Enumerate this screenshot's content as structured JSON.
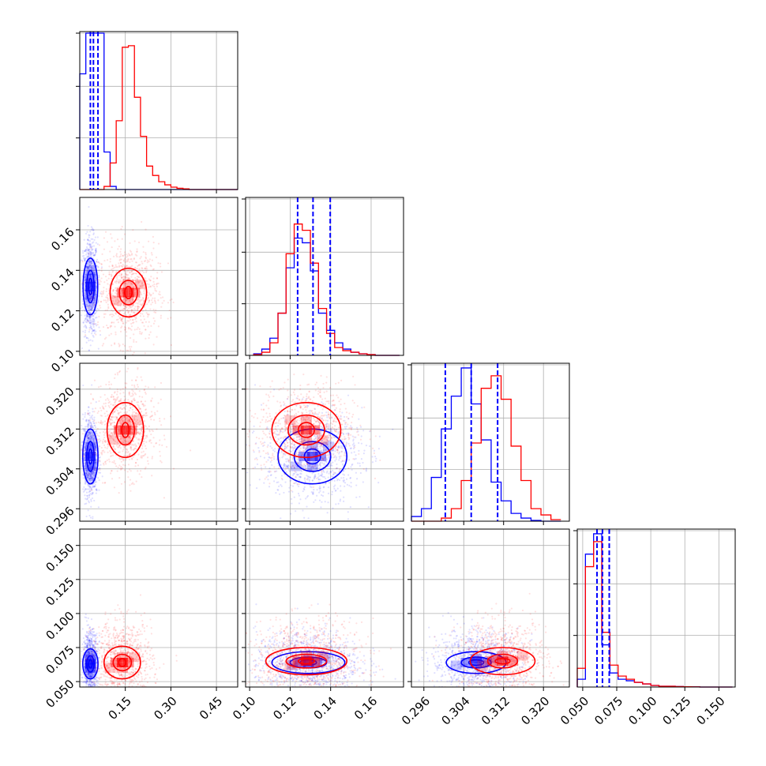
{
  "chart_data": {
    "type": "corner",
    "series": [
      {
        "name": "",
        "color": "#0000ff"
      },
      {
        "name": "",
        "color": "#ff0000"
      }
    ],
    "parameters": [
      {
        "range": [
          0.0,
          0.52
        ],
        "ticks": [
          "0.15",
          "0.30",
          "0.45"
        ],
        "tick_values": [
          0.15,
          0.3,
          0.45
        ]
      },
      {
        "range": [
          0.098,
          0.176
        ],
        "ticks": [
          "0.10",
          "0.12",
          "0.14",
          "0.16"
        ],
        "tick_values": [
          0.1,
          0.12,
          0.14,
          0.16
        ]
      },
      {
        "range": [
          0.2935,
          0.3252
        ],
        "ticks": [
          "0.296",
          "0.304",
          "0.312",
          "0.320"
        ],
        "tick_values": [
          0.296,
          0.304,
          0.312,
          0.32
        ]
      },
      {
        "range": [
          0.046,
          0.162
        ],
        "ticks": [
          "0.050",
          "0.075",
          "0.100",
          "0.125",
          "0.150"
        ],
        "tick_values": [
          0.05,
          0.075,
          0.1,
          0.125,
          0.15
        ]
      }
    ],
    "histograms": [
      {
        "bins": [
          0.0,
          0.02,
          0.04,
          0.06,
          0.08,
          0.1,
          0.12,
          0.14,
          0.16,
          0.18,
          0.2,
          0.22,
          0.24,
          0.26,
          0.28,
          0.3,
          0.32,
          0.34,
          0.36,
          0.38,
          0.4,
          0.42,
          0.44,
          0.46,
          0.48,
          0.5,
          0.52
        ],
        "blue": [
          0.74,
          1.0,
          1.0,
          1.0,
          0.24,
          0.02,
          0,
          0,
          0,
          0,
          0,
          0,
          0,
          0,
          0,
          0,
          0,
          0,
          0,
          0,
          0,
          0,
          0,
          0,
          0,
          0
        ],
        "red": [
          0,
          0,
          0,
          0,
          0.02,
          0.17,
          0.44,
          0.91,
          0.92,
          0.59,
          0.34,
          0.15,
          0.09,
          0.05,
          0.03,
          0.015,
          0.008,
          0.004,
          0,
          0,
          0,
          0,
          0,
          0,
          0,
          0
        ],
        "blue_quantiles": [
          0.035,
          0.045,
          0.06
        ]
      },
      {
        "bins": [
          0.102,
          0.106,
          0.11,
          0.114,
          0.118,
          0.122,
          0.126,
          0.13,
          0.134,
          0.138,
          0.142,
          0.146,
          0.15,
          0.154,
          0.158,
          0.162,
          0.166,
          0.17,
          0.174
        ],
        "blue": [
          0.01,
          0.04,
          0.11,
          0.27,
          0.56,
          0.75,
          0.72,
          0.54,
          0.27,
          0.16,
          0.08,
          0.04,
          0.02,
          0.01,
          0.005,
          0,
          0,
          0
        ],
        "red": [
          0.005,
          0.02,
          0.08,
          0.27,
          0.65,
          0.84,
          0.8,
          0.59,
          0.3,
          0.14,
          0.05,
          0.03,
          0.02,
          0.01,
          0.005,
          0,
          0,
          0
        ],
        "blue_quantiles": [
          0.1237,
          0.1313,
          0.1398
        ]
      },
      {
        "bins": [
          0.2935,
          0.2955,
          0.2975,
          0.2995,
          0.3015,
          0.3035,
          0.3055,
          0.3075,
          0.3095,
          0.3115,
          0.3135,
          0.3155,
          0.3175,
          0.3195,
          0.3215,
          0.3235
        ],
        "blue": [
          0.03,
          0.08,
          0.28,
          0.59,
          0.8,
          0.98,
          0.75,
          0.52,
          0.25,
          0.13,
          0.05,
          0.02,
          0.005,
          0,
          0
        ],
        "red": [
          0,
          0,
          0,
          0.02,
          0.08,
          0.26,
          0.5,
          0.85,
          0.93,
          0.78,
          0.48,
          0.26,
          0.08,
          0.04,
          0.01
        ],
        "blue_quantiles": [
          0.3003,
          0.3055,
          0.3108
        ]
      },
      {
        "bins": [
          0.046,
          0.052,
          0.058,
          0.064,
          0.07,
          0.076,
          0.082,
          0.088,
          0.094,
          0.1,
          0.106,
          0.112,
          0.118,
          0.124,
          0.13,
          0.136,
          0.142,
          0.148,
          0.154,
          0.16
        ],
        "blue": [
          0.05,
          0.85,
          0.98,
          0.27,
          0.09,
          0.05,
          0.04,
          0.03,
          0.02,
          0.01,
          0.005,
          0.005,
          0.003,
          0.002,
          0.001,
          0,
          0,
          0,
          0
        ],
        "red": [
          0.12,
          0.77,
          0.93,
          0.35,
          0.14,
          0.07,
          0.05,
          0.03,
          0.02,
          0.01,
          0.005,
          0.005,
          0.003,
          0.002,
          0.001,
          0,
          0,
          0,
          0
        ],
        "blue_quantiles": [
          0.0605,
          0.0645,
          0.0695
        ]
      }
    ],
    "panels_2d": [
      {
        "x": 0,
        "y": 1,
        "blue": {
          "center": [
            0.035,
            0.132
          ],
          "contour_widths": [
            [
              0.006,
              0.004
            ],
            [
              0.012,
              0.008
            ],
            [
              0.024,
              0.014
            ]
          ],
          "scatter_spread": [
            0.012,
            0.012
          ],
          "cells": [
            [
              0.035,
              0.132,
              0.9
            ],
            [
              0.035,
              0.128,
              0.6
            ],
            [
              0.035,
              0.136,
              0.6
            ],
            [
              0.035,
              0.124,
              0.3
            ],
            [
              0.035,
              0.14,
              0.3
            ]
          ]
        },
        "red": {
          "center": [
            0.16,
            0.129
          ],
          "contour_widths": [
            [
              0.012,
              0.003
            ],
            [
              0.03,
              0.006
            ],
            [
              0.06,
              0.012
            ]
          ],
          "scatter_spread": [
            0.05,
            0.012
          ],
          "cells": [
            [
              0.16,
              0.129,
              0.9
            ],
            [
              0.14,
              0.129,
              0.6
            ],
            [
              0.18,
              0.129,
              0.6
            ],
            [
              0.16,
              0.133,
              0.4
            ],
            [
              0.16,
              0.125,
              0.4
            ],
            [
              0.2,
              0.133,
              0.3
            ],
            [
              0.12,
              0.125,
              0.3
            ]
          ]
        }
      },
      {
        "x": 0,
        "y": 2,
        "blue": {
          "center": [
            0.035,
            0.3065
          ],
          "contour_widths": [
            [
              0.006,
              0.0015
            ],
            [
              0.012,
              0.003
            ],
            [
              0.025,
              0.0055
            ]
          ],
          "scatter_spread": [
            0.012,
            0.004
          ],
          "cells": [
            [
              0.035,
              0.3065,
              0.9
            ],
            [
              0.035,
              0.3045,
              0.6
            ],
            [
              0.035,
              0.3085,
              0.6
            ],
            [
              0.035,
              0.3025,
              0.3
            ],
            [
              0.035,
              0.3105,
              0.3
            ]
          ]
        },
        "red": {
          "center": [
            0.15,
            0.3118
          ],
          "contour_widths": [
            [
              0.012,
              0.0015
            ],
            [
              0.03,
              0.003
            ],
            [
              0.06,
              0.0055
            ]
          ],
          "scatter_spread": [
            0.05,
            0.0045
          ],
          "cells": [
            [
              0.15,
              0.3118,
              0.9
            ],
            [
              0.13,
              0.3118,
              0.6
            ],
            [
              0.17,
              0.3118,
              0.6
            ],
            [
              0.15,
              0.3138,
              0.4
            ],
            [
              0.15,
              0.3098,
              0.4
            ],
            [
              0.19,
              0.3138,
              0.3
            ],
            [
              0.11,
              0.3098,
              0.3
            ]
          ]
        }
      },
      {
        "x": 0,
        "y": 3,
        "blue": {
          "center": [
            0.035,
            0.063
          ],
          "contour_widths": [
            [
              0.006,
              0.003
            ],
            [
              0.012,
              0.006
            ],
            [
              0.025,
              0.011
            ]
          ],
          "scatter_spread": [
            0.012,
            0.012
          ],
          "cells": [
            [
              0.035,
              0.063,
              0.9
            ],
            [
              0.035,
              0.06,
              0.6
            ],
            [
              0.035,
              0.066,
              0.6
            ],
            [
              0.035,
              0.057,
              0.3
            ],
            [
              0.035,
              0.069,
              0.3
            ]
          ]
        },
        "red": {
          "center": [
            0.14,
            0.064
          ],
          "contour_widths": [
            [
              0.012,
              0.003
            ],
            [
              0.03,
              0.006
            ],
            [
              0.06,
              0.012
            ]
          ],
          "scatter_spread": [
            0.05,
            0.015
          ],
          "cells": [
            [
              0.14,
              0.064,
              0.9
            ],
            [
              0.12,
              0.064,
              0.6
            ],
            [
              0.16,
              0.064,
              0.6
            ],
            [
              0.14,
              0.068,
              0.4
            ],
            [
              0.14,
              0.06,
              0.4
            ],
            [
              0.18,
              0.068,
              0.3
            ],
            [
              0.1,
              0.06,
              0.3
            ]
          ]
        }
      },
      {
        "x": 1,
        "y": 2,
        "blue": {
          "center": [
            0.131,
            0.3065
          ],
          "contour_widths": [
            [
              0.004,
              0.0015
            ],
            [
              0.009,
              0.003
            ],
            [
              0.017,
              0.0055
            ]
          ],
          "scatter_spread": [
            0.012,
            0.0045
          ],
          "cells": [
            [
              0.131,
              0.3065,
              0.9
            ],
            [
              0.127,
              0.3065,
              0.6
            ],
            [
              0.135,
              0.3065,
              0.6
            ],
            [
              0.131,
              0.3045,
              0.4
            ],
            [
              0.131,
              0.3085,
              0.4
            ],
            [
              0.123,
              0.3045,
              0.3
            ],
            [
              0.139,
              0.3085,
              0.3
            ]
          ]
        },
        "red": {
          "center": [
            0.128,
            0.3118
          ],
          "contour_widths": [
            [
              0.004,
              0.0015
            ],
            [
              0.009,
              0.003
            ],
            [
              0.017,
              0.0055
            ]
          ],
          "scatter_spread": [
            0.012,
            0.0045
          ],
          "cells": [
            [
              0.128,
              0.3118,
              0.9
            ],
            [
              0.124,
              0.3118,
              0.6
            ],
            [
              0.132,
              0.3118,
              0.6
            ],
            [
              0.128,
              0.3138,
              0.4
            ],
            [
              0.128,
              0.3098,
              0.4
            ],
            [
              0.12,
              0.3138,
              0.3
            ],
            [
              0.136,
              0.3098,
              0.3
            ]
          ]
        }
      },
      {
        "x": 1,
        "y": 3,
        "blue": {
          "center": [
            0.129,
            0.064
          ],
          "contour_widths": [
            [
              0.004,
              0.002
            ],
            [
              0.009,
              0.004
            ],
            [
              0.018,
              0.008
            ]
          ],
          "scatter_spread": [
            0.013,
            0.012
          ],
          "cells": [
            [
              0.129,
              0.064,
              0.9
            ],
            [
              0.125,
              0.064,
              0.6
            ],
            [
              0.133,
              0.064,
              0.6
            ],
            [
              0.129,
              0.067,
              0.4
            ],
            [
              0.121,
              0.062,
              0.3
            ],
            [
              0.137,
              0.067,
              0.3
            ]
          ]
        },
        "red": {
          "center": [
            0.128,
            0.065
          ],
          "contour_widths": [
            [
              0.004,
              0.002
            ],
            [
              0.01,
              0.005
            ],
            [
              0.02,
              0.01
            ]
          ],
          "scatter_spread": [
            0.014,
            0.015
          ],
          "cells": [
            [
              0.128,
              0.065,
              0.9
            ],
            [
              0.124,
              0.065,
              0.6
            ],
            [
              0.132,
              0.065,
              0.6
            ],
            [
              0.128,
              0.069,
              0.4
            ],
            [
              0.12,
              0.062,
              0.3
            ],
            [
              0.136,
              0.069,
              0.3
            ]
          ]
        }
      },
      {
        "x": 2,
        "y": 3,
        "blue": {
          "center": [
            0.3065,
            0.064
          ],
          "contour_widths": [
            [
              0.0015,
              0.002
            ],
            [
              0.003,
              0.004
            ],
            [
              0.006,
              0.008
            ]
          ],
          "scatter_spread": [
            0.0045,
            0.012
          ],
          "cells": [
            [
              0.3065,
              0.064,
              0.9
            ],
            [
              0.3045,
              0.064,
              0.6
            ],
            [
              0.3085,
              0.064,
              0.6
            ],
            [
              0.3065,
              0.067,
              0.4
            ],
            [
              0.3025,
              0.062,
              0.3
            ],
            [
              0.3105,
              0.067,
              0.3
            ]
          ]
        },
        "red": {
          "center": [
            0.3118,
            0.065
          ],
          "contour_widths": [
            [
              0.0015,
              0.002
            ],
            [
              0.003,
              0.005
            ],
            [
              0.0065,
              0.01
            ]
          ],
          "scatter_spread": [
            0.0045,
            0.015
          ],
          "cells": [
            [
              0.3118,
              0.065,
              0.9
            ],
            [
              0.3098,
              0.065,
              0.6
            ],
            [
              0.3138,
              0.065,
              0.6
            ],
            [
              0.3118,
              0.069,
              0.4
            ],
            [
              0.3078,
              0.062,
              0.3
            ],
            [
              0.3158,
              0.069,
              0.3
            ]
          ]
        }
      }
    ]
  }
}
